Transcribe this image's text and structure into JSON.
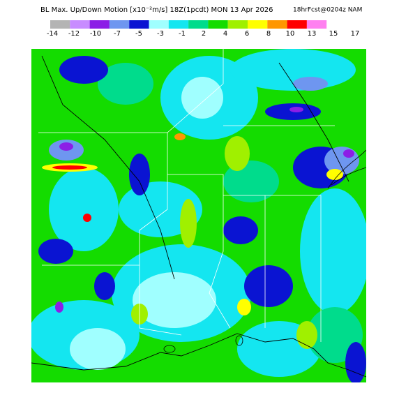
{
  "header": {
    "title": "BL Max. Up/Down Motion [x10⁻²m/s] 18Z(1pcdt) MON 13 Apr 2026",
    "forecast": "18hrFcst@0204z NAM"
  },
  "legend": {
    "colors": [
      "#b4b4b4",
      "#c88cff",
      "#8c1ee6",
      "#6e96f0",
      "#0a14d2",
      "#a0ffff",
      "#14e6f0",
      "#00dc8c",
      "#14dc00",
      "#a0f000",
      "#ffff00",
      "#ff9600",
      "#ff0000",
      "#ff80f0"
    ],
    "labels": [
      -14,
      -12,
      -10,
      -7,
      -5,
      -3,
      -1,
      2,
      4,
      6,
      8,
      10,
      13,
      15,
      17
    ]
  }
}
